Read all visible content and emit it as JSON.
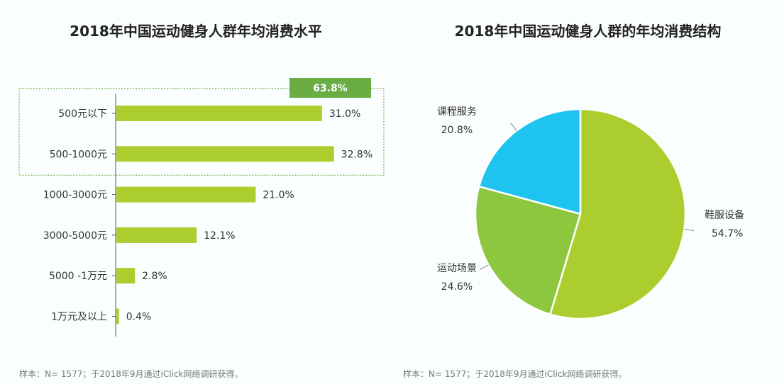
{
  "colors": {
    "bar": "#abcd2e",
    "badge": "#6bad45",
    "highlight_border": "#6bad45",
    "slice_shoes": "#abcd2e",
    "slice_venue": "#8dc63f",
    "slice_course": "#1fc3ef"
  },
  "chart_data": [
    {
      "type": "bar",
      "orientation": "horizontal",
      "title": "2018年中国运动健身人群年均消费水平",
      "categories": [
        "500元以下",
        "500-1000元",
        "1000-3000元",
        "3000-5000元",
        "5000 -1万元",
        "1万元及以上"
      ],
      "values": [
        31.0,
        32.8,
        21.0,
        12.1,
        2.8,
        0.4
      ],
      "value_labels": [
        "31.0%",
        "32.8%",
        "21.0%",
        "12.1%",
        "2.8%",
        "0.4%"
      ],
      "unit": "%",
      "xlim": [
        0,
        40
      ],
      "grid": false,
      "annotation": {
        "text": "63.8%",
        "value": 63.8,
        "covers_categories": [
          "500元以下",
          "500-1000元"
        ]
      },
      "source": "样本：N= 1577；于2018年9月通过iClick网络调研获得。"
    },
    {
      "type": "pie",
      "title": "2018年中国运动健身人群的年均消费结构",
      "categories": [
        "鞋服设备",
        "运动场景",
        "课程服务"
      ],
      "values": [
        54.7,
        24.6,
        20.8
      ],
      "value_labels": [
        "54.7%",
        "24.6%",
        "20.8%"
      ],
      "unit": "%",
      "source": "样本：N= 1577；于2018年9月通过iClick网络调研获得。"
    }
  ]
}
